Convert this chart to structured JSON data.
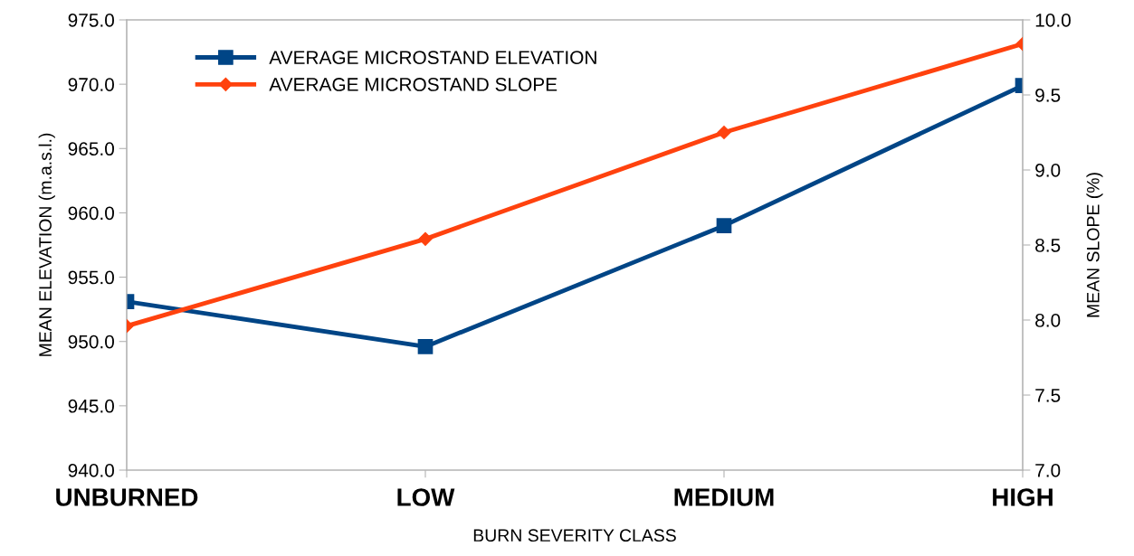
{
  "chart_data": {
    "type": "line",
    "xlabel": "BURN SEVERITY CLASS",
    "ylabel": "MEAN ELEVATION (m.a.s.l.)",
    "y2label": "MEAN SLOPE (%)",
    "categories": [
      "UNBURNED",
      "LOW",
      "MEDIUM",
      "HIGH"
    ],
    "series": [
      {
        "name": "AVERAGE MICROSTAND ELEVATION",
        "color": "#004586",
        "marker": "square",
        "values": [
          953.1,
          949.6,
          959.0,
          969.9
        ]
      },
      {
        "name": "AVERAGE MICROSTAND SLOPE",
        "color": "#ff420e",
        "marker": "diamond",
        "axis": "y2",
        "values": [
          7.96,
          8.54,
          9.25,
          9.84
        ]
      }
    ],
    "ylim": [
      940,
      975
    ],
    "yticks": [
      {
        "value": 940,
        "label": "940.0"
      },
      {
        "value": 945,
        "label": "945.0"
      },
      {
        "value": 950,
        "label": "950.0"
      },
      {
        "value": 955,
        "label": "955.0"
      },
      {
        "value": 960,
        "label": "960.0"
      },
      {
        "value": 965,
        "label": "965.0"
      },
      {
        "value": 970,
        "label": "970.0"
      },
      {
        "value": 975,
        "label": "975.0"
      }
    ],
    "y2lim": [
      7,
      10
    ],
    "y2ticks": [
      {
        "value": 7,
        "label": "7.0"
      },
      {
        "value": 7.5,
        "label": "7.5"
      },
      {
        "value": 8,
        "label": "8.0"
      },
      {
        "value": 8.5,
        "label": "8.5"
      },
      {
        "value": 9,
        "label": "9.0"
      },
      {
        "value": 9.5,
        "label": "9.5"
      },
      {
        "value": 10,
        "label": "10.0"
      }
    ],
    "grid": false,
    "legend": "top left",
    "line_style": "solid"
  }
}
